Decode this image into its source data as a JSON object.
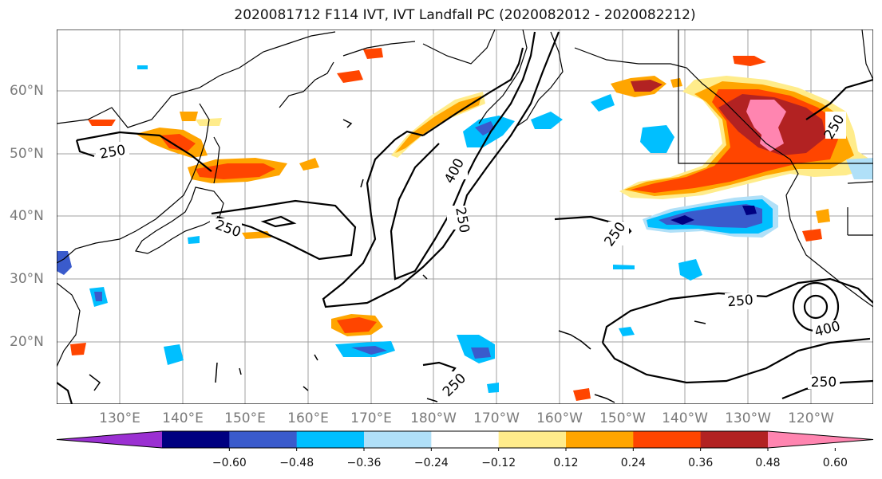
{
  "title": "2020081712 F114 IVT, IVT Landfall PC (2020082012 - 2020082212)",
  "lat_labels": [
    "60°N",
    "50°N",
    "40°N",
    "30°N",
    "20°N"
  ],
  "lon_labels": [
    "130°E",
    "140°E",
    "150°E",
    "160°E",
    "170°E",
    "180°W",
    "170°W",
    "160°W",
    "150°W",
    "140°W",
    "130°W",
    "120°W"
  ],
  "contour_labels": [
    "250",
    "250",
    "400",
    "250",
    "250",
    "250",
    "250",
    "400",
    "250"
  ],
  "colorbar": {
    "colors": [
      "#9b30d2",
      "#000080",
      "#3a5bcc",
      "#00bfff",
      "#b0e0f8",
      "#ffffff",
      "#ffec8b",
      "#ffa500",
      "#ff4500",
      "#b22222",
      "#ff85b0"
    ],
    "ticks": [
      "−0.60",
      "−0.48",
      "−0.36",
      "−0.24",
      "−0.12",
      "0.12",
      "0.24",
      "0.36",
      "0.48",
      "0.60"
    ]
  }
}
